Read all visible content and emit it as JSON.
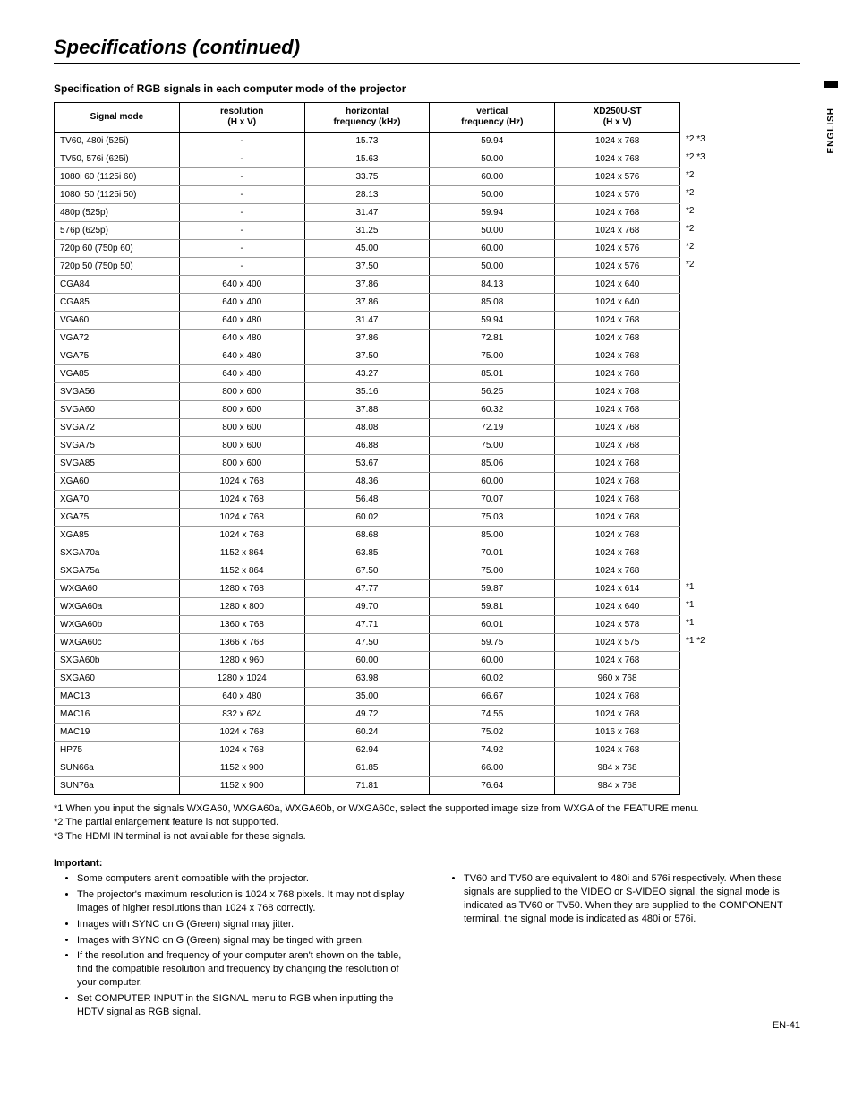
{
  "page": {
    "title": "Specifications (continued)",
    "section_heading": "Specification of RGB signals in each computer mode of the projector",
    "side_label": "ENGLISH",
    "page_number": "EN-41"
  },
  "table": {
    "headers": {
      "mode": "Signal mode",
      "resolution_l1": "resolution",
      "resolution_l2": "(H x V)",
      "hfreq_l1": "horizontal",
      "hfreq_l2": "frequency (kHz)",
      "vfreq_l1": "vertical",
      "vfreq_l2": "frequency (Hz)",
      "xd_l1": "XD250U-ST",
      "xd_l2": "(H x V)"
    },
    "rows": [
      {
        "mode": "TV60, 480i (525i)",
        "res": "-",
        "hf": "15.73",
        "vf": "59.94",
        "xd": "1024 x 768",
        "note": "*2 *3"
      },
      {
        "mode": "TV50, 576i (625i)",
        "res": "-",
        "hf": "15.63",
        "vf": "50.00",
        "xd": "1024 x 768",
        "note": "*2 *3"
      },
      {
        "mode": "1080i 60 (1125i 60)",
        "res": "-",
        "hf": "33.75",
        "vf": "60.00",
        "xd": "1024 x 576",
        "note": "*2"
      },
      {
        "mode": "1080i 50 (1125i 50)",
        "res": "-",
        "hf": "28.13",
        "vf": "50.00",
        "xd": "1024 x 576",
        "note": "*2"
      },
      {
        "mode": "480p (525p)",
        "res": "-",
        "hf": "31.47",
        "vf": "59.94",
        "xd": "1024 x 768",
        "note": "*2"
      },
      {
        "mode": "576p (625p)",
        "res": "-",
        "hf": "31.25",
        "vf": "50.00",
        "xd": "1024 x 768",
        "note": "*2"
      },
      {
        "mode": "720p 60 (750p 60)",
        "res": "-",
        "hf": "45.00",
        "vf": "60.00",
        "xd": "1024 x 576",
        "note": "*2"
      },
      {
        "mode": "720p 50 (750p 50)",
        "res": "-",
        "hf": "37.50",
        "vf": "50.00",
        "xd": "1024 x 576",
        "note": "*2"
      },
      {
        "mode": "CGA84",
        "res": "640 x 400",
        "hf": "37.86",
        "vf": "84.13",
        "xd": "1024 x 640",
        "note": ""
      },
      {
        "mode": "CGA85",
        "res": "640 x 400",
        "hf": "37.86",
        "vf": "85.08",
        "xd": "1024 x 640",
        "note": ""
      },
      {
        "mode": "VGA60",
        "res": "640 x 480",
        "hf": "31.47",
        "vf": "59.94",
        "xd": "1024 x 768",
        "note": ""
      },
      {
        "mode": "VGA72",
        "res": "640 x 480",
        "hf": "37.86",
        "vf": "72.81",
        "xd": "1024 x 768",
        "note": ""
      },
      {
        "mode": "VGA75",
        "res": "640 x 480",
        "hf": "37.50",
        "vf": "75.00",
        "xd": "1024 x 768",
        "note": ""
      },
      {
        "mode": "VGA85",
        "res": "640 x 480",
        "hf": "43.27",
        "vf": "85.01",
        "xd": "1024 x 768",
        "note": ""
      },
      {
        "mode": "SVGA56",
        "res": "800 x 600",
        "hf": "35.16",
        "vf": "56.25",
        "xd": "1024 x 768",
        "note": ""
      },
      {
        "mode": "SVGA60",
        "res": "800 x 600",
        "hf": "37.88",
        "vf": "60.32",
        "xd": "1024 x 768",
        "note": ""
      },
      {
        "mode": "SVGA72",
        "res": "800 x 600",
        "hf": "48.08",
        "vf": "72.19",
        "xd": "1024 x 768",
        "note": ""
      },
      {
        "mode": "SVGA75",
        "res": "800 x 600",
        "hf": "46.88",
        "vf": "75.00",
        "xd": "1024 x 768",
        "note": ""
      },
      {
        "mode": "SVGA85",
        "res": "800 x 600",
        "hf": "53.67",
        "vf": "85.06",
        "xd": "1024 x 768",
        "note": ""
      },
      {
        "mode": "XGA60",
        "res": "1024 x 768",
        "hf": "48.36",
        "vf": "60.00",
        "xd": "1024 x 768",
        "note": ""
      },
      {
        "mode": "XGA70",
        "res": "1024 x 768",
        "hf": "56.48",
        "vf": "70.07",
        "xd": "1024 x 768",
        "note": ""
      },
      {
        "mode": "XGA75",
        "res": "1024 x 768",
        "hf": "60.02",
        "vf": "75.03",
        "xd": "1024 x 768",
        "note": ""
      },
      {
        "mode": "XGA85",
        "res": "1024 x 768",
        "hf": "68.68",
        "vf": "85.00",
        "xd": "1024 x 768",
        "note": ""
      },
      {
        "mode": "SXGA70a",
        "res": "1152 x 864",
        "hf": "63.85",
        "vf": "70.01",
        "xd": "1024 x 768",
        "note": ""
      },
      {
        "mode": "SXGA75a",
        "res": "1152 x 864",
        "hf": "67.50",
        "vf": "75.00",
        "xd": "1024 x 768",
        "note": ""
      },
      {
        "mode": "WXGA60",
        "res": "1280 x 768",
        "hf": "47.77",
        "vf": "59.87",
        "xd": "1024 x 614",
        "note": "*1"
      },
      {
        "mode": "WXGA60a",
        "res": "1280 x 800",
        "hf": "49.70",
        "vf": "59.81",
        "xd": "1024 x 640",
        "note": "*1"
      },
      {
        "mode": "WXGA60b",
        "res": "1360 x 768",
        "hf": "47.71",
        "vf": "60.01",
        "xd": "1024 x 578",
        "note": "*1"
      },
      {
        "mode": "WXGA60c",
        "res": "1366 x 768",
        "hf": "47.50",
        "vf": "59.75",
        "xd": "1024 x 575",
        "note": "*1 *2"
      },
      {
        "mode": "SXGA60b",
        "res": "1280 x 960",
        "hf": "60.00",
        "vf": "60.00",
        "xd": "1024 x 768",
        "note": ""
      },
      {
        "mode": "SXGA60",
        "res": "1280 x 1024",
        "hf": "63.98",
        "vf": "60.02",
        "xd": "960 x 768",
        "note": ""
      },
      {
        "mode": "MAC13",
        "res": "640 x 480",
        "hf": "35.00",
        "vf": "66.67",
        "xd": "1024 x 768",
        "note": ""
      },
      {
        "mode": "MAC16",
        "res": "832 x 624",
        "hf": "49.72",
        "vf": "74.55",
        "xd": "1024 x 768",
        "note": ""
      },
      {
        "mode": "MAC19",
        "res": "1024 x 768",
        "hf": "60.24",
        "vf": "75.02",
        "xd": "1016 x 768",
        "note": ""
      },
      {
        "mode": "HP75",
        "res": "1024 x 768",
        "hf": "62.94",
        "vf": "74.92",
        "xd": "1024 x 768",
        "note": ""
      },
      {
        "mode": "SUN66a",
        "res": "1152 x 900",
        "hf": "61.85",
        "vf": "66.00",
        "xd": "984 x 768",
        "note": ""
      },
      {
        "mode": "SUN76a",
        "res": "1152 x 900",
        "hf": "71.81",
        "vf": "76.64",
        "xd": "984 x 768",
        "note": ""
      }
    ]
  },
  "footnotes": {
    "n1": "*1 When you input the signals WXGA60, WXGA60a, WXGA60b, or WXGA60c, select the supported image size from WXGA of the FEATURE menu.",
    "n2": "*2 The partial enlargement feature is not supported.",
    "n3": "*3 The HDMI IN terminal is not available for these signals."
  },
  "important": {
    "heading": "Important:",
    "left": [
      "Some computers aren't compatible with the projector.",
      "The projector's maximum resolution is 1024 x 768 pixels. It may not display images of higher resolutions than 1024 x 768 correctly.",
      "Images with SYNC on G (Green) signal may jitter.",
      "Images with SYNC on G (Green) signal may be tinged with green.",
      "If the resolution and frequency of your computer aren't shown on the table, find the compatible resolution and frequency by changing the resolution of your computer.",
      "Set COMPUTER INPUT in the SIGNAL menu to RGB when inputting the HDTV signal as RGB signal."
    ],
    "right": [
      "TV60 and TV50 are equivalent to 480i and 576i respectively. When these signals are supplied to the VIDEO or S-VIDEO signal, the signal mode is indicated as TV60 or TV50. When they are supplied to the COMPONENT terminal, the signal mode is indicated as 480i or 576i."
    ]
  }
}
